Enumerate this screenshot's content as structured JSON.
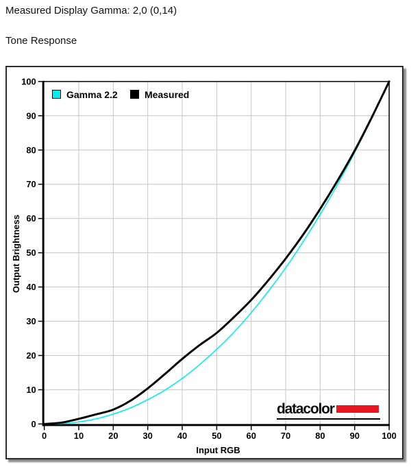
{
  "header": {
    "gamma_line": "Measured Display Gamma: 2,0 (0,14)",
    "section_title": "Tone Response"
  },
  "chart_data": {
    "type": "line",
    "title": "Tone Response",
    "xlabel": "Input RGB",
    "ylabel": "Output Brightness",
    "xlim": [
      0,
      100
    ],
    "ylim": [
      0,
      100
    ],
    "xticks": [
      0,
      10,
      20,
      30,
      40,
      50,
      60,
      70,
      80,
      90,
      100
    ],
    "yticks": [
      0,
      10,
      20,
      30,
      40,
      50,
      60,
      70,
      80,
      90,
      100
    ],
    "grid": true,
    "grid_color": "#c6c6c6",
    "legend_position": "top-left-inside",
    "x": [
      0,
      5,
      10,
      15,
      20,
      25,
      30,
      35,
      40,
      45,
      50,
      55,
      60,
      65,
      70,
      75,
      80,
      85,
      90,
      95,
      100
    ],
    "series": [
      {
        "name": "Gamma 2.2",
        "color": "#00eeee",
        "width": 1.6,
        "values": [
          0,
          0.1,
          0.6,
          1.5,
          2.9,
          4.7,
          7.1,
          9.9,
          13.3,
          17.3,
          21.8,
          26.8,
          32.5,
          38.8,
          45.6,
          53.1,
          61.2,
          69.9,
          79.3,
          89.3,
          100
        ]
      },
      {
        "name": "Measured",
        "color": "#000000",
        "width": 3,
        "values": [
          0,
          0.4,
          1.5,
          2.8,
          4.2,
          6.8,
          10.4,
          14.6,
          19.0,
          23.0,
          26.6,
          31.2,
          36.2,
          42.0,
          48.3,
          55.2,
          62.8,
          71.0,
          79.8,
          89.6,
          100
        ]
      }
    ]
  },
  "logo": {
    "text": "datacolor",
    "bar_color": "#e9161f"
  }
}
